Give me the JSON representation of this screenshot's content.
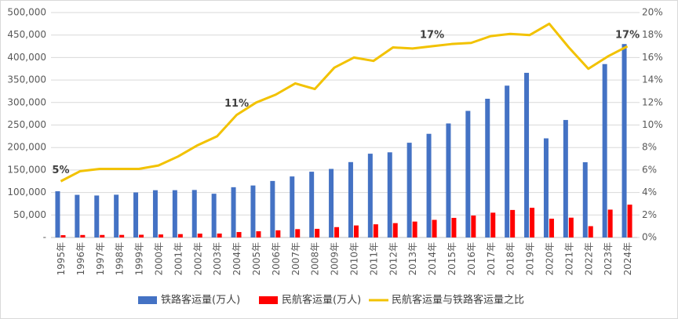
{
  "chart_data": {
    "type": "bar",
    "categories": [
      "1995年",
      "1996年",
      "1997年",
      "1998年",
      "1999年",
      "2000年",
      "2001年",
      "2002年",
      "2003年",
      "2004年",
      "2005年",
      "2006年",
      "2007年",
      "2008年",
      "2009年",
      "2010年",
      "2011年",
      "2012年",
      "2013年",
      "2014年",
      "2015年",
      "2016年",
      "2017年",
      "2018年",
      "2019年",
      "2020年",
      "2021年",
      "2022年",
      "2023年",
      "2024年"
    ],
    "series": [
      {
        "name": "铁路客运量(万人)",
        "type": "bar",
        "color": "#4472c4",
        "values": [
          102745,
          94797,
          93308,
          95085,
          100164,
          105073,
          105155,
          105606,
          97260,
          111764,
          115583,
          125656,
          135670,
          146193,
          152451,
          167609,
          186226,
          189337,
          210597,
          230460,
          253484,
          281405,
          308379,
          337495,
          366002,
          220350,
          261171,
          167296,
          385480,
          430000
        ]
      },
      {
        "name": "民航客运量(万人)",
        "type": "bar",
        "color": "#ff0000",
        "values": [
          5117,
          5555,
          5630,
          5755,
          6094,
          6722,
          7524,
          8594,
          8759,
          12123,
          13827,
          15968,
          18576,
          19251,
          23052,
          26769,
          29317,
          31936,
          35397,
          39195,
          43618,
          48796,
          55156,
          61174,
          65993,
          41778,
          44056,
          25171,
          61957,
          73000
        ]
      },
      {
        "name": "民航客运量与铁路客运量之比",
        "type": "line",
        "axis": "y2",
        "color": "#f2c200",
        "values": [
          5.0,
          5.9,
          6.1,
          6.1,
          6.1,
          6.4,
          7.2,
          8.2,
          9.0,
          10.9,
          12.0,
          12.7,
          13.7,
          13.2,
          15.1,
          16.0,
          15.7,
          16.9,
          16.8,
          17.0,
          17.2,
          17.3,
          17.9,
          18.1,
          18.0,
          19.0,
          16.9,
          15.0,
          16.1,
          17.0
        ],
        "value_labels": [
          "5%",
          null,
          null,
          null,
          null,
          null,
          null,
          null,
          null,
          "11%",
          null,
          null,
          null,
          null,
          null,
          null,
          null,
          null,
          null,
          "17%",
          null,
          null,
          null,
          null,
          null,
          null,
          null,
          null,
          null,
          "17%"
        ]
      }
    ],
    "ylim": [
      0,
      500000
    ],
    "yticks": [
      {
        "value": 0,
        "label": "-"
      },
      {
        "value": 50000,
        "label": "50,000"
      },
      {
        "value": 100000,
        "label": "100,000"
      },
      {
        "value": 150000,
        "label": "150,000"
      },
      {
        "value": 200000,
        "label": "200,000"
      },
      {
        "value": 250000,
        "label": "250,000"
      },
      {
        "value": 300000,
        "label": "300,000"
      },
      {
        "value": 350000,
        "label": "350,000"
      },
      {
        "value": 400000,
        "label": "400,000"
      },
      {
        "value": 450000,
        "label": "450,000"
      },
      {
        "value": 500000,
        "label": "500,000"
      }
    ],
    "y2lim": [
      0,
      20
    ],
    "y2ticks": [
      {
        "value": 0,
        "label": "0%"
      },
      {
        "value": 2,
        "label": "2%"
      },
      {
        "value": 4,
        "label": "4%"
      },
      {
        "value": 6,
        "label": "6%"
      },
      {
        "value": 8,
        "label": "8%"
      },
      {
        "value": 10,
        "label": "10%"
      },
      {
        "value": 12,
        "label": "12%"
      },
      {
        "value": 14,
        "label": "14%"
      },
      {
        "value": 16,
        "label": "16%"
      },
      {
        "value": 18,
        "label": "18%"
      },
      {
        "value": 20,
        "label": "20%"
      }
    ],
    "grid": true,
    "legend": "bottom"
  }
}
